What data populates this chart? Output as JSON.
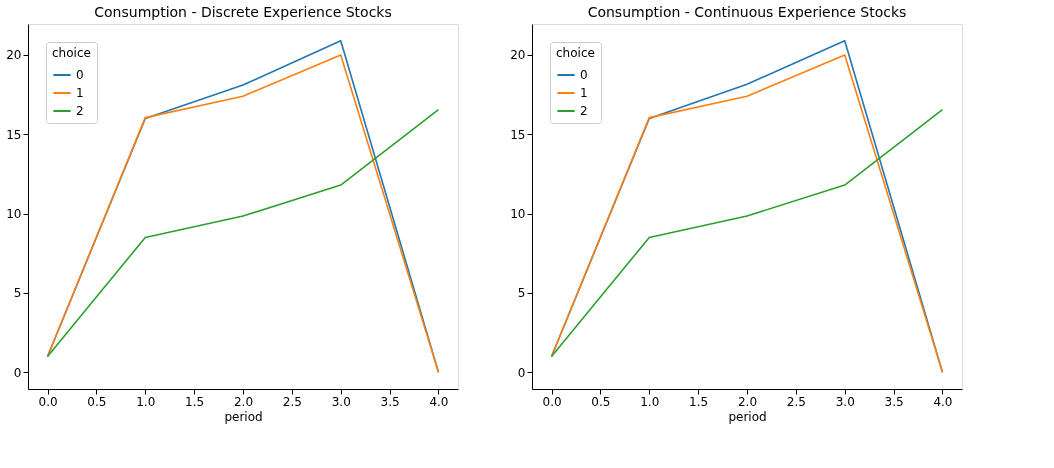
{
  "chart_data": [
    {
      "type": "line",
      "title": "Consumption - Discrete Experience Stocks",
      "xlabel": "period",
      "legend_title": "choice",
      "legend": "top left",
      "grid": false,
      "x": [
        0,
        1,
        2,
        3,
        4
      ],
      "xlim": [
        -0.2,
        4.2
      ],
      "ylim": [
        -1.05,
        21.95
      ],
      "xticks": [
        {
          "value": 0,
          "label": "0.0"
        },
        {
          "value": 0.5,
          "label": "0.5"
        },
        {
          "value": 1,
          "label": "1.0"
        },
        {
          "value": 1.5,
          "label": "1.5"
        },
        {
          "value": 2,
          "label": "2.0"
        },
        {
          "value": 2.5,
          "label": "2.5"
        },
        {
          "value": 3,
          "label": "3.0"
        },
        {
          "value": 3.5,
          "label": "3.5"
        },
        {
          "value": 4,
          "label": "4.0"
        }
      ],
      "yticks": [
        0,
        5,
        10,
        15,
        20
      ],
      "series": [
        {
          "name": "0",
          "color": "#1f77b4",
          "values": [
            1,
            16.0,
            18.1,
            20.9,
            0
          ]
        },
        {
          "name": "1",
          "color": "#ff7f0e",
          "values": [
            1,
            16.05,
            17.4,
            20.0,
            0
          ]
        },
        {
          "name": "2",
          "color": "#2ca02c",
          "values": [
            1,
            8.5,
            9.85,
            11.8,
            16.55
          ]
        }
      ]
    },
    {
      "type": "line",
      "title": "Consumption - Continuous Experience Stocks",
      "xlabel": "period",
      "legend_title": "choice",
      "legend": "top left",
      "grid": false,
      "x": [
        0,
        1,
        2,
        3,
        4
      ],
      "xlim": [
        -0.2,
        4.2
      ],
      "ylim": [
        -1.05,
        21.95
      ],
      "xticks": [
        {
          "value": 0,
          "label": "0.0"
        },
        {
          "value": 0.5,
          "label": "0.5"
        },
        {
          "value": 1,
          "label": "1.0"
        },
        {
          "value": 1.5,
          "label": "1.5"
        },
        {
          "value": 2,
          "label": "2.0"
        },
        {
          "value": 2.5,
          "label": "2.5"
        },
        {
          "value": 3,
          "label": "3.0"
        },
        {
          "value": 3.5,
          "label": "3.5"
        },
        {
          "value": 4,
          "label": "4.0"
        }
      ],
      "yticks": [
        0,
        5,
        10,
        15,
        20
      ],
      "series": [
        {
          "name": "0",
          "color": "#1f77b4",
          "values": [
            1,
            16.0,
            18.15,
            20.9,
            0
          ]
        },
        {
          "name": "1",
          "color": "#ff7f0e",
          "values": [
            1,
            16.05,
            17.4,
            20.0,
            0
          ]
        },
        {
          "name": "2",
          "color": "#2ca02c",
          "values": [
            1,
            8.5,
            9.85,
            11.8,
            16.55
          ]
        }
      ]
    }
  ]
}
